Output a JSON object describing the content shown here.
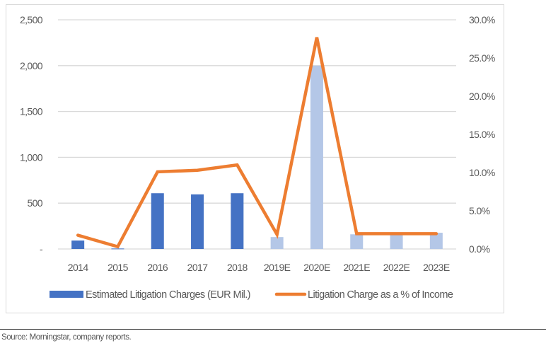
{
  "chart_data": {
    "type": "bar+line",
    "categories": [
      "2014",
      "2015",
      "2016",
      "2017",
      "2018",
      "2019E",
      "2020E",
      "2021E",
      "2022E",
      "2023E"
    ],
    "series": [
      {
        "name": "Estimated Litigation Charges (EUR Mil.)",
        "type": "bar",
        "axis": "left",
        "values": [
          92,
          5,
          608,
          596,
          608,
          130,
          2000,
          160,
          160,
          177
        ],
        "estimated_from_index": 5,
        "color": "#4472C4",
        "estimate_color": "#B4C7E7"
      },
      {
        "name": "Litigation Charge as a % of Income",
        "type": "line",
        "axis": "right",
        "values": [
          1.8,
          0.3,
          10.1,
          10.3,
          11.0,
          1.9,
          27.7,
          2.0,
          2.0,
          2.0
        ],
        "color": "#ED7D31"
      }
    ],
    "left_axis": {
      "ylim": [
        0,
        2500
      ],
      "ticks": [
        0,
        500,
        1000,
        1500,
        2000,
        2500
      ],
      "tick_labels": [
        "-",
        "500",
        "1,000",
        "1,500",
        "2,000",
        "2,500"
      ]
    },
    "right_axis": {
      "ylim": [
        0,
        30
      ],
      "ticks": [
        0,
        5,
        10,
        15,
        20,
        25,
        30
      ],
      "tick_labels": [
        "0.0%",
        "5.0%",
        "10.0%",
        "15.0%",
        "20.0%",
        "25.0%",
        "30.0%"
      ]
    },
    "grid": true,
    "legend_position": "bottom",
    "title": "",
    "xlabel": "",
    "ylabel": ""
  },
  "footer": {
    "source": "Source: Morningstar, company reports."
  }
}
